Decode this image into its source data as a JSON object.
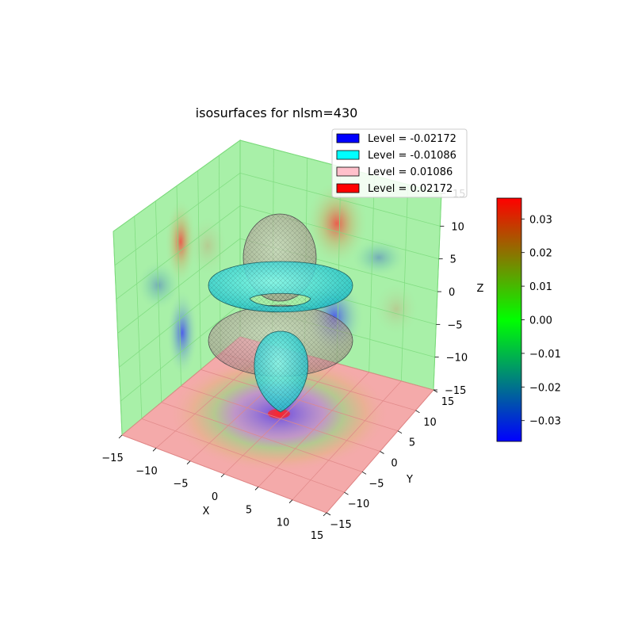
{
  "chart_data": {
    "type": "3d-isosurface",
    "title": "isosurfaces for nlsm=430",
    "xlabel": "X",
    "ylabel": "Y",
    "zlabel": "Z",
    "xlim": [
      -15,
      15
    ],
    "ylim": [
      -15,
      15
    ],
    "zlim": [
      -15,
      15
    ],
    "x_ticks": [
      "−15",
      "−10",
      "−5",
      "0",
      "5",
      "10",
      "15"
    ],
    "y_ticks": [
      "−15",
      "−10",
      "−5",
      "0",
      "5",
      "10",
      "15"
    ],
    "z_ticks": [
      "−15",
      "−10",
      "−5",
      "0",
      "5",
      "10",
      "15"
    ],
    "legend": [
      {
        "label": "Level = -0.02172",
        "color": "#0000ff"
      },
      {
        "label": "Level = -0.01086",
        "color": "#00ffff"
      },
      {
        "label": "Level = 0.01086",
        "color": "#ffc0cb"
      },
      {
        "label": "Level = 0.02172",
        "color": "#ff0000"
      }
    ],
    "levels": [
      -0.02172,
      -0.01086,
      0.01086,
      0.02172
    ],
    "colorbar": {
      "min": -0.0362,
      "max": 0.0362,
      "colors": [
        "#0000ff",
        "#00ff00",
        "#ff0000"
      ],
      "ticks": [
        {
          "value": 0.03,
          "label": "0.03"
        },
        {
          "value": 0.02,
          "label": "0.02"
        },
        {
          "value": 0.01,
          "label": "0.01"
        },
        {
          "value": 0.0,
          "label": "0.00"
        },
        {
          "value": -0.01,
          "label": "−0.01"
        },
        {
          "value": -0.02,
          "label": "−0.02"
        },
        {
          "value": -0.03,
          "label": "−0.03"
        }
      ]
    },
    "pane_colors": {
      "walls": "#a8f0a8",
      "floor": "#f4aaaa"
    },
    "grid": true
  }
}
